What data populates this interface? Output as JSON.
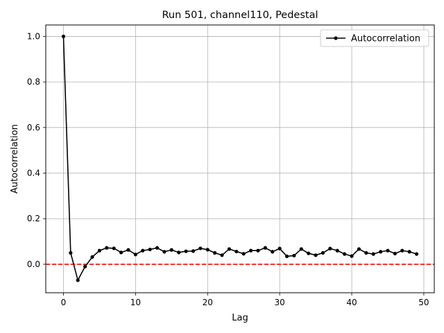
{
  "chart_data": {
    "type": "line",
    "title": "Run 501, channel110, Pedestal",
    "xlabel": "Lag",
    "ylabel": "Autocorrelation",
    "xlim": [
      -2.45,
      51.45
    ],
    "ylim": [
      -0.125,
      1.05
    ],
    "xticks": [
      0,
      10,
      20,
      30,
      40,
      50
    ],
    "yticks": [
      0.0,
      0.2,
      0.4,
      0.6,
      0.8,
      1.0
    ],
    "xtick_labels": [
      "0",
      "10",
      "20",
      "30",
      "40",
      "50"
    ],
    "ytick_labels": [
      "0.0",
      "0.2",
      "0.4",
      "0.6",
      "0.8",
      "1.0"
    ],
    "grid": true,
    "legend_position": "top-right",
    "series": [
      {
        "name": "Autocorrelation",
        "color": "#000000",
        "marker": "circle",
        "x": [
          0,
          1,
          2,
          3,
          4,
          5,
          6,
          7,
          8,
          9,
          10,
          11,
          12,
          13,
          14,
          15,
          16,
          17,
          18,
          19,
          20,
          21,
          22,
          23,
          24,
          25,
          26,
          27,
          28,
          29,
          30,
          31,
          32,
          33,
          34,
          35,
          36,
          37,
          38,
          39,
          40,
          41,
          42,
          43,
          44,
          45,
          46,
          47,
          48,
          49
        ],
        "y": [
          1.0,
          0.05,
          -0.07,
          -0.01,
          0.032,
          0.06,
          0.072,
          0.07,
          0.052,
          0.063,
          0.043,
          0.06,
          0.065,
          0.072,
          0.055,
          0.063,
          0.052,
          0.057,
          0.058,
          0.07,
          0.064,
          0.05,
          0.04,
          0.067,
          0.056,
          0.046,
          0.06,
          0.06,
          0.072,
          0.055,
          0.069,
          0.035,
          0.038,
          0.067,
          0.048,
          0.04,
          0.05,
          0.069,
          0.06,
          0.045,
          0.036,
          0.067,
          0.05,
          0.045,
          0.055,
          0.06,
          0.047,
          0.06,
          0.055,
          0.045
        ]
      }
    ],
    "reference_line": {
      "y": 0.0,
      "color": "#ff0000",
      "style": "dashed"
    }
  }
}
